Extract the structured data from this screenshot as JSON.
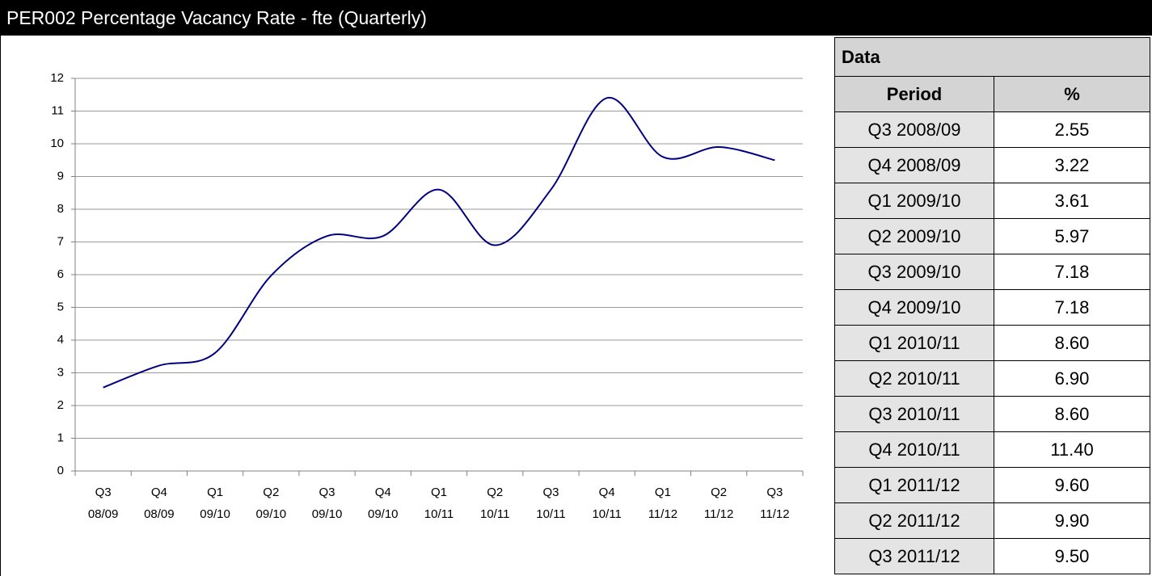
{
  "header": {
    "title": "PER002 Percentage Vacancy Rate - fte (Quarterly)"
  },
  "chart_data": {
    "type": "line",
    "categories": [
      [
        "Q3",
        "08/09"
      ],
      [
        "Q4",
        "08/09"
      ],
      [
        "Q1",
        "09/10"
      ],
      [
        "Q2",
        "09/10"
      ],
      [
        "Q3",
        "09/10"
      ],
      [
        "Q4",
        "09/10"
      ],
      [
        "Q1",
        "10/11"
      ],
      [
        "Q2",
        "10/11"
      ],
      [
        "Q3",
        "10/11"
      ],
      [
        "Q4",
        "10/11"
      ],
      [
        "Q1",
        "11/12"
      ],
      [
        "Q2",
        "11/12"
      ],
      [
        "Q3",
        "11/12"
      ]
    ],
    "values": [
      2.55,
      3.22,
      3.61,
      5.97,
      7.18,
      7.18,
      8.6,
      6.9,
      8.6,
      11.4,
      9.6,
      9.9,
      9.5
    ],
    "color": "#000080",
    "ylim": [
      0,
      12
    ],
    "yticks": [
      0,
      1,
      2,
      3,
      4,
      5,
      6,
      7,
      8,
      9,
      10,
      11,
      12
    ],
    "grid": true,
    "smooth": true
  },
  "table": {
    "title": "Data",
    "header": [
      "Period",
      "%"
    ],
    "rows": [
      [
        "Q3 2008/09",
        "2.55"
      ],
      [
        "Q4 2008/09",
        "3.22"
      ],
      [
        "Q1 2009/10",
        "3.61"
      ],
      [
        "Q2 2009/10",
        "5.97"
      ],
      [
        "Q3 2009/10",
        "7.18"
      ],
      [
        "Q4 2009/10",
        "7.18"
      ],
      [
        "Q1 2010/11",
        "8.60"
      ],
      [
        "Q2 2010/11",
        "6.90"
      ],
      [
        "Q3 2010/11",
        "8.60"
      ],
      [
        "Q4 2010/11",
        "11.40"
      ],
      [
        "Q1 2011/12",
        "9.60"
      ],
      [
        "Q2 2011/12",
        "9.90"
      ],
      [
        "Q3 2011/12",
        "9.50"
      ]
    ]
  }
}
